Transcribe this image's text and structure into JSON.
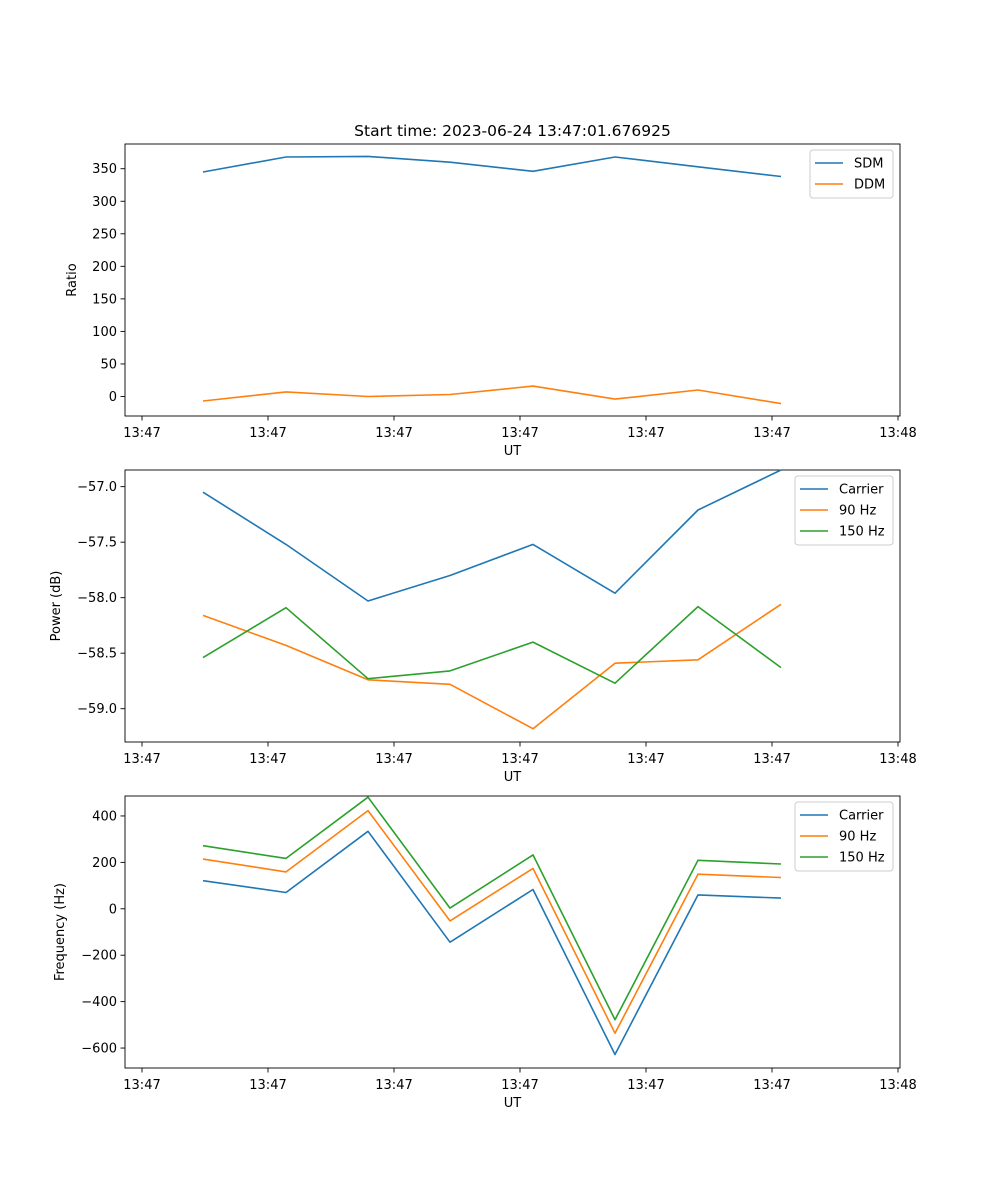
{
  "figure_title": "Start time: 2023-06-24 13:47:01.676925",
  "chart_data": [
    {
      "type": "line",
      "xlabel": "UT",
      "ylabel": "Ratio",
      "x_tick_labels": [
        "13:47",
        "13:47",
        "13:47",
        "13:47",
        "13:47",
        "13:47",
        "13:48"
      ],
      "y_ticks": [
        0,
        50,
        100,
        150,
        200,
        250,
        300,
        350
      ],
      "y_tick_labels": [
        "0",
        "50",
        "100",
        "150",
        "200",
        "250",
        "300",
        "350"
      ],
      "ylim": [
        -30,
        388
      ],
      "legend": "top-right",
      "colors": [
        "#1f77b4",
        "#ff7f0e"
      ],
      "series": [
        {
          "name": "SDM",
          "values": [
            345,
            368,
            369,
            360,
            346,
            368,
            353,
            338
          ]
        },
        {
          "name": "DDM",
          "values": [
            -7,
            7,
            0,
            3,
            16,
            -4,
            10,
            -11
          ]
        }
      ]
    },
    {
      "type": "line",
      "xlabel": "UT",
      "ylabel": "Power (dB)",
      "x_tick_labels": [
        "13:47",
        "13:47",
        "13:47",
        "13:47",
        "13:47",
        "13:47",
        "13:48"
      ],
      "y_ticks": [
        -57.0,
        -57.5,
        -58.0,
        -58.5,
        -59.0
      ],
      "y_tick_labels": [
        "−57.0",
        "−57.5",
        "−58.0",
        "−58.5",
        "−59.0"
      ],
      "ylim": [
        -59.3,
        -56.85
      ],
      "legend": "top-right",
      "colors": [
        "#1f77b4",
        "#ff7f0e",
        "#2ca02c"
      ],
      "series": [
        {
          "name": "Carrier",
          "values": [
            -57.05,
            -57.52,
            -58.03,
            -57.8,
            -57.52,
            -57.96,
            -57.21,
            -56.85
          ]
        },
        {
          "name": "90 Hz",
          "values": [
            -58.16,
            -58.43,
            -58.74,
            -58.78,
            -59.18,
            -58.59,
            -58.56,
            -58.06
          ]
        },
        {
          "name": "150 Hz",
          "values": [
            -58.54,
            -58.09,
            -58.73,
            -58.66,
            -58.4,
            -58.77,
            -58.08,
            -58.63
          ]
        }
      ]
    },
    {
      "type": "line",
      "xlabel": "UT",
      "ylabel": "Frequency (Hz)",
      "x_tick_labels": [
        "13:47",
        "13:47",
        "13:47",
        "13:47",
        "13:47",
        "13:47",
        "13:48"
      ],
      "y_ticks": [
        400,
        200,
        0,
        -200,
        -400,
        -600
      ],
      "y_tick_labels": [
        "400",
        "200",
        "0",
        "−200",
        "−400",
        "−600"
      ],
      "ylim": [
        -686,
        486
      ],
      "legend": "top-right",
      "colors": [
        "#1f77b4",
        "#ff7f0e",
        "#2ca02c"
      ],
      "series": [
        {
          "name": "Carrier",
          "values": [
            121,
            70,
            334,
            -144,
            83,
            -628,
            60,
            46
          ]
        },
        {
          "name": "90 Hz",
          "values": [
            214,
            159,
            423,
            -52,
            174,
            -536,
            149,
            135
          ]
        },
        {
          "name": "150 Hz",
          "values": [
            272,
            217,
            481,
            3,
            232,
            -478,
            209,
            193
          ]
        }
      ]
    }
  ]
}
